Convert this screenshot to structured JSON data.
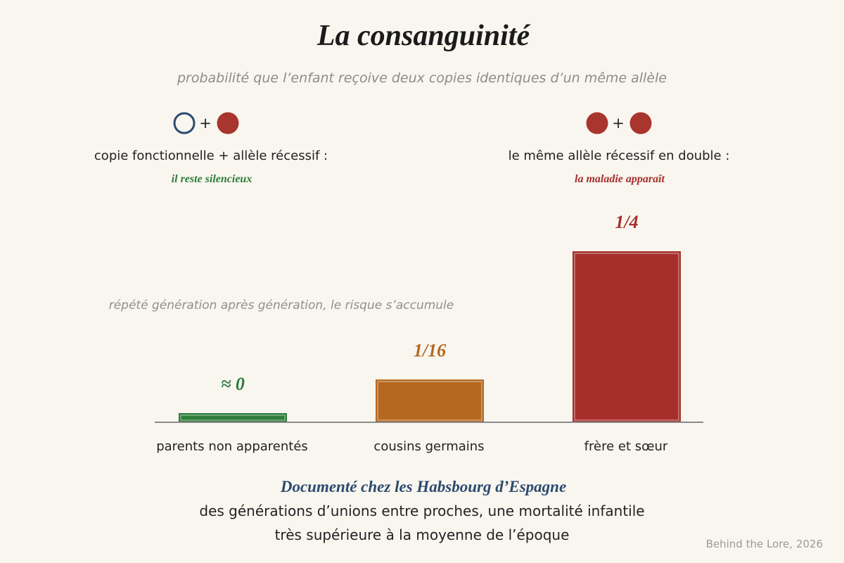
{
  "colors": {
    "background": "#f9f6f0",
    "green": "#2e7d3a",
    "orange": "#b5681f",
    "red": "#a62f2b",
    "blue": "#2c4a6e",
    "gray": "#8c8c8c"
  },
  "header": {
    "title": "La consanguinité",
    "subtitle": "probabilité que l’enfant reçoive deux copies identiques d’un même allèle"
  },
  "legend": {
    "left": {
      "icons": [
        "open-circle-icon",
        "filled-red-circle-icon"
      ],
      "plus": "+",
      "text": "copie fonctionnelle + allèle récessif :",
      "note": "il reste silencieux"
    },
    "right": {
      "icons": [
        "filled-red-circle-icon",
        "filled-red-circle-icon"
      ],
      "plus": "+",
      "text": "le même allèle récessif en double :",
      "note": "la maladie apparaît"
    }
  },
  "chart_data": {
    "type": "bar",
    "categories": [
      "parents non apparentés",
      "cousins germains",
      "frère et sœur"
    ],
    "values": [
      0,
      0.0625,
      0.25
    ],
    "data_labels": [
      "≈ 0",
      "1/16",
      "1/4"
    ],
    "bar_colors": [
      "#2e7d3a",
      "#b5681f",
      "#a62f2b"
    ],
    "annotation": "répété génération après génération, le risque s’accumule",
    "ylim": [
      0,
      0.25
    ],
    "grid": false
  },
  "footer": {
    "heading": "Documenté chez les Habsbourg d’Espagne",
    "line1": "des générations d’unions entre proches, une mortalité infantile",
    "line2": "très supérieure à la moyenne de l’époque",
    "credit": "Behind the Lore, 2026"
  }
}
